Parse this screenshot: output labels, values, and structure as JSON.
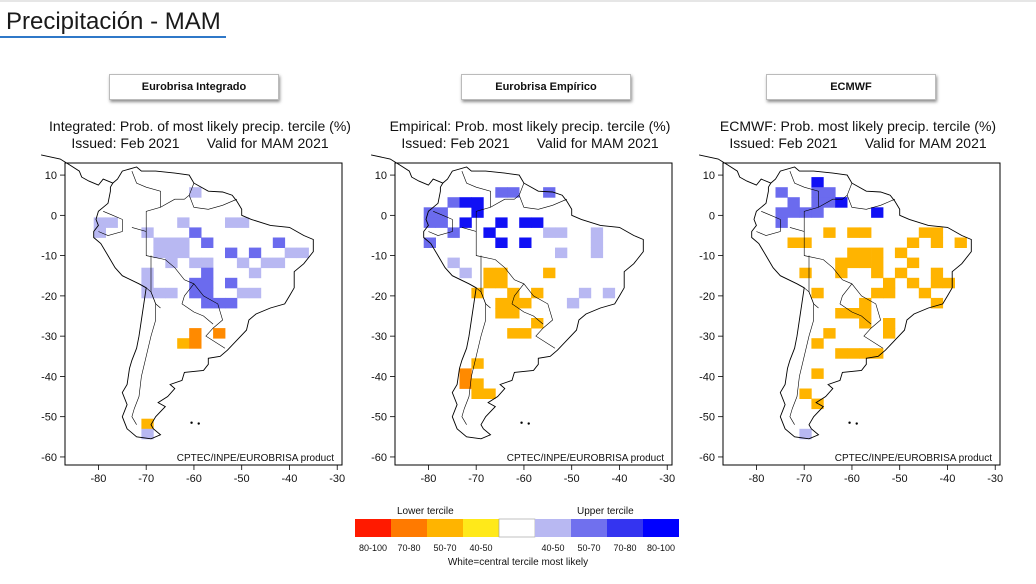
{
  "page": {
    "title": "Precipitación - MAM"
  },
  "panels": [
    {
      "id": "integrated",
      "label": "Eurobrisa Integrado",
      "title_line1": "Integrated: Prob. of most likely precip. tercile (%)",
      "title_line2": "Issued: Feb 2021       Valid for MAM 2021",
      "credit": "CPTEC/INPE/EUROBRISA product",
      "y_ticks": [
        "10",
        "0",
        "-10",
        "-20",
        "-30",
        "-40",
        "-50",
        "-60"
      ],
      "x_ticks": [
        "-80",
        "-70",
        "-60",
        "-50",
        "-40",
        "-30"
      ]
    },
    {
      "id": "empirical",
      "label": "Eurobrisa Empírico",
      "title_line1": "Empirical: Prob. most likely precip. tercile (%)",
      "title_line2": "Issued: Feb 2021       Valid for MAM 2021",
      "credit": "CPTEC/INPE/EUROBRISA product",
      "y_ticks": [
        "10",
        "0",
        "-10",
        "-20",
        "-30",
        "-40",
        "-50",
        "-60"
      ],
      "x_ticks": [
        "-80",
        "-70",
        "-60",
        "-50",
        "-40",
        "-30"
      ]
    },
    {
      "id": "ecmwf",
      "label": "ECMWF",
      "title_line1": "ECMWF: Prob. most likely precip. tercile (%)",
      "title_line2": "Issued: Feb 2021       Valid for MAM 2021",
      "credit": "CPTEC/INPE/EUROBRISA product",
      "y_ticks": [
        "10",
        "0",
        "-10",
        "-20",
        "-30",
        "-40",
        "-50",
        "-60"
      ],
      "x_ticks": [
        "-80",
        "-70",
        "-60",
        "-50",
        "-40",
        "-30"
      ]
    }
  ],
  "legend": {
    "lower_label": "Lower tercile",
    "upper_label": "Upper tercile",
    "footer": "White=central tercile most likely",
    "bins": [
      {
        "label": "80-100",
        "color": "#ff1a00"
      },
      {
        "label": "70-80",
        "color": "#ff7a00"
      },
      {
        "label": "50-70",
        "color": "#ffb400"
      },
      {
        "label": "40-50",
        "color": "#ffe91a"
      },
      {
        "label": "",
        "color": "#ffffff"
      },
      {
        "label": "40-50",
        "color": "#b8b8f2"
      },
      {
        "label": "50-70",
        "color": "#7070ee"
      },
      {
        "label": "70-80",
        "color": "#3434f0"
      },
      {
        "label": "80-100",
        "color": "#0000ff"
      }
    ]
  },
  "chart_data": [
    {
      "type": "heatmap",
      "name": "integrated",
      "x_range": [
        -87,
        -29
      ],
      "y_range": [
        -62,
        13
      ],
      "cell_deg": 2.5,
      "categories": [
        "lower-high",
        "lower-mid",
        "upper-light",
        "upper-mid",
        "upper-strong"
      ],
      "regions": [
        {
          "category": "upper-light",
          "lon": [
            -64,
            -35
          ],
          "lat": [
            -12,
            0
          ]
        },
        {
          "category": "upper-light",
          "lon": [
            -62,
            -45
          ],
          "lat": [
            -20,
            -12
          ]
        },
        {
          "category": "upper-mid",
          "lon": [
            -60,
            -42
          ],
          "lat": [
            -10,
            -2
          ]
        },
        {
          "category": "upper-mid",
          "lon": [
            -62,
            -52
          ],
          "lat": [
            -22,
            -14
          ]
        },
        {
          "category": "upper-light",
          "lon": [
            -70,
            -64
          ],
          "lat": [
            -20,
            -2
          ]
        },
        {
          "category": "upper-light",
          "lon": [
            -80,
            -76
          ],
          "lat": [
            -6,
            0
          ]
        },
        {
          "category": "upper-light",
          "lon": [
            -60,
            -54
          ],
          "lat": [
            4,
            8
          ]
        },
        {
          "category": "lower-mid",
          "lon": [
            -64,
            -50
          ],
          "lat": [
            -36,
            -26
          ]
        },
        {
          "category": "lower-mid",
          "lon": [
            -72,
            -64
          ],
          "lat": [
            -52,
            -44
          ]
        },
        {
          "category": "lower-mid",
          "lon": [
            -82,
            -76
          ],
          "lat": [
            8,
            13
          ]
        },
        {
          "category": "lower-high",
          "lon": [
            -60,
            -54
          ],
          "lat": [
            -34,
            -28
          ]
        },
        {
          "category": "upper-light",
          "lon": [
            -74,
            -66
          ],
          "lat": [
            -57,
            -52
          ]
        }
      ]
    },
    {
      "type": "heatmap",
      "name": "empirical",
      "x_range": [
        -87,
        -29
      ],
      "y_range": [
        -62,
        13
      ],
      "cell_deg": 2.5,
      "categories": [
        "lower-high",
        "lower-mid",
        "upper-light",
        "upper-mid",
        "upper-strong"
      ],
      "regions": [
        {
          "category": "upper-mid",
          "lon": [
            -80,
            -52
          ],
          "lat": [
            -8,
            10
          ]
        },
        {
          "category": "upper-strong",
          "lon": [
            -74,
            -54
          ],
          "lat": [
            -8,
            4
          ]
        },
        {
          "category": "upper-light",
          "lon": [
            -56,
            -44
          ],
          "lat": [
            -10,
            -2
          ]
        },
        {
          "category": "upper-light",
          "lon": [
            -80,
            -70
          ],
          "lat": [
            -20,
            -10
          ]
        },
        {
          "category": "lower-mid",
          "lon": [
            -70,
            -54
          ],
          "lat": [
            -30,
            -14
          ]
        },
        {
          "category": "lower-high",
          "lon": [
            -56,
            -50
          ],
          "lat": [
            -28,
            -24
          ]
        },
        {
          "category": "lower-mid",
          "lon": [
            -74,
            -60
          ],
          "lat": [
            -46,
            -36
          ]
        },
        {
          "category": "lower-high",
          "lon": [
            -74,
            -70
          ],
          "lat": [
            -44,
            -38
          ]
        },
        {
          "category": "upper-light",
          "lon": [
            -50,
            -42
          ],
          "lat": [
            -22,
            -16
          ]
        },
        {
          "category": "upper-light",
          "lon": [
            -76,
            -66
          ],
          "lat": [
            -56,
            -52
          ]
        }
      ]
    },
    {
      "type": "heatmap",
      "name": "ecmwf",
      "x_range": [
        -87,
        -29
      ],
      "y_range": [
        -62,
        13
      ],
      "cell_deg": 2.5,
      "categories": [
        "lower-high",
        "lower-mid",
        "upper-light",
        "upper-mid",
        "upper-strong"
      ],
      "regions": [
        {
          "category": "upper-strong",
          "lon": [
            -72,
            -48
          ],
          "lat": [
            0,
            10
          ]
        },
        {
          "category": "upper-mid",
          "lon": [
            -76,
            -64
          ],
          "lat": [
            -2,
            6
          ]
        },
        {
          "category": "upper-light",
          "lon": [
            -66,
            -56
          ],
          "lat": [
            -4,
            0
          ]
        },
        {
          "category": "lower-mid",
          "lon": [
            -74,
            -36
          ],
          "lat": [
            -22,
            -4
          ]
        },
        {
          "category": "lower-mid",
          "lon": [
            -66,
            -50
          ],
          "lat": [
            -36,
            -22
          ]
        },
        {
          "category": "lower-mid",
          "lon": [
            -72,
            -66
          ],
          "lat": [
            -48,
            -30
          ]
        },
        {
          "category": "lower-high",
          "lon": [
            -82,
            -78
          ],
          "lat": [
            -6,
            -2
          ]
        },
        {
          "category": "upper-light",
          "lon": [
            -72,
            -64
          ],
          "lat": [
            -56,
            -52
          ]
        }
      ]
    }
  ]
}
